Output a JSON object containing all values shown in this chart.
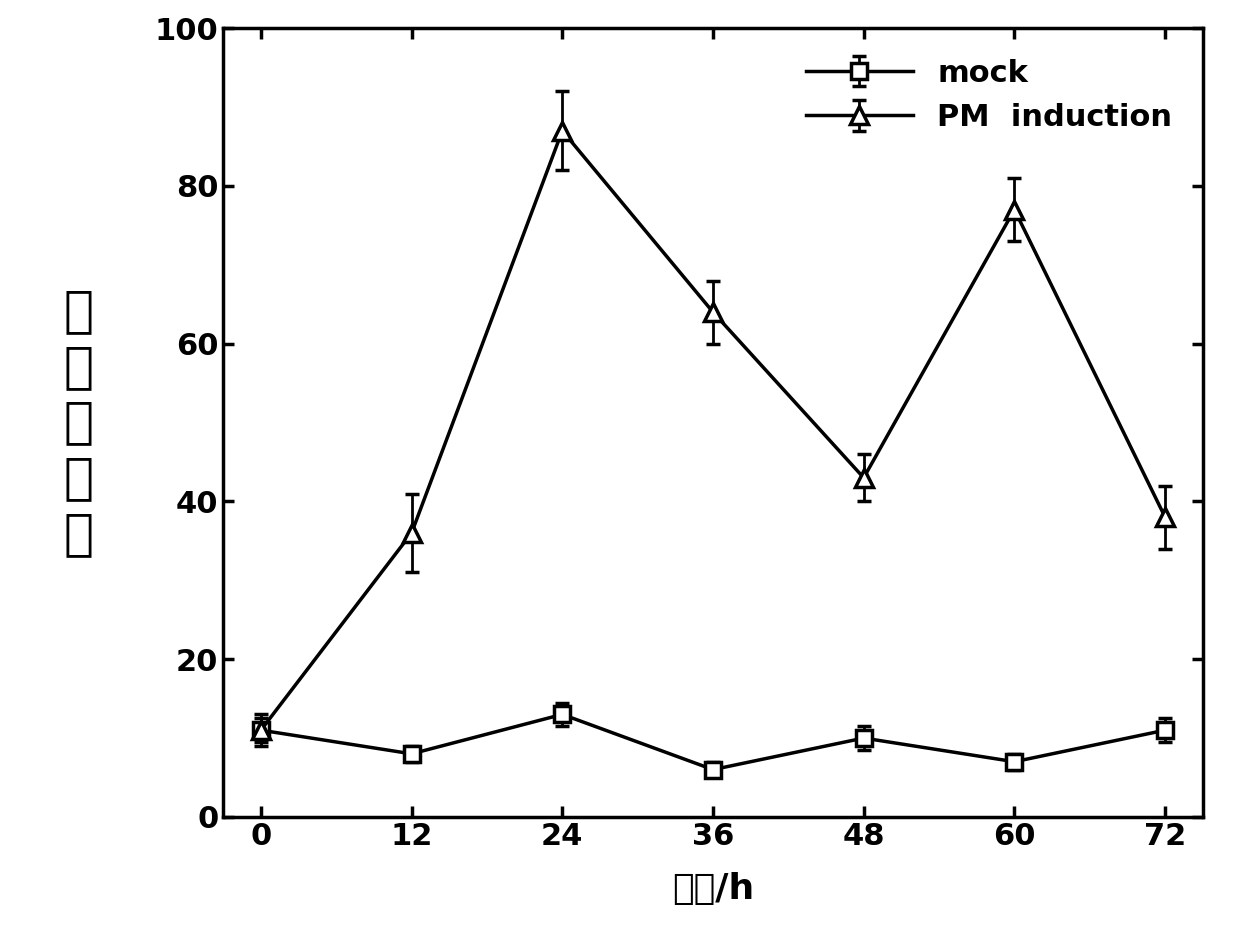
{
  "x": [
    0,
    12,
    24,
    36,
    48,
    60,
    72
  ],
  "mock_y": [
    11,
    8,
    13,
    6,
    10,
    7,
    11
  ],
  "mock_yerr": [
    1.5,
    1.0,
    1.5,
    1.0,
    1.5,
    1.0,
    1.5
  ],
  "pm_y": [
    11,
    36,
    87,
    64,
    43,
    77,
    38
  ],
  "pm_yerr": [
    2.0,
    5.0,
    5.0,
    4.0,
    3.0,
    4.0,
    4.0
  ],
  "xlabel": "时间/h",
  "ylabel": "相对表达量",
  "xlim": [
    -3,
    75
  ],
  "ylim": [
    0,
    100
  ],
  "yticks": [
    0,
    20,
    40,
    60,
    80,
    100
  ],
  "xticks": [
    0,
    12,
    24,
    36,
    48,
    60,
    72
  ],
  "legend_mock": "mock",
  "legend_pm": "PM  induction",
  "line_color": "#000000",
  "background_color": "#ffffff",
  "fontsize_label": 26,
  "fontsize_tick": 22,
  "fontsize_legend": 22,
  "fontsize_ylabel": 36
}
